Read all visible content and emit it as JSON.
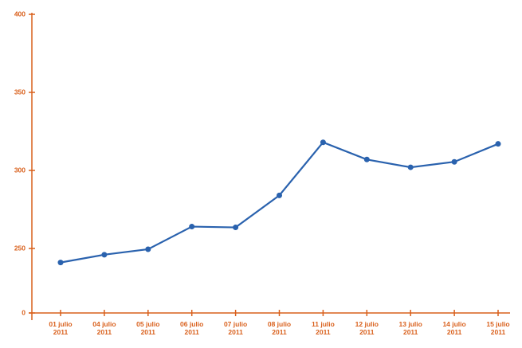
{
  "chart_data": {
    "type": "line",
    "categories": [
      "01 julio 2011",
      "04 julio 2011",
      "05 julio 2011",
      "06 julio 2011",
      "07 julio 2011",
      "08 julio 2011",
      "11 julio 2011",
      "12 julio 2011",
      "13 julio 2011",
      "14 julio 2011",
      "15 julio 2011"
    ],
    "series": [
      {
        "name": null,
        "color": "#2a62ae",
        "values": [
          241,
          246,
          249.5,
          264,
          263.5,
          284,
          318,
          307,
          302,
          305.5,
          317
        ]
      }
    ],
    "ylim": [
      0,
      400
    ],
    "yticks": [
      0,
      250,
      300,
      350,
      400
    ],
    "y_axis_break": true,
    "axis_color": "#d9601c",
    "grid": false
  }
}
